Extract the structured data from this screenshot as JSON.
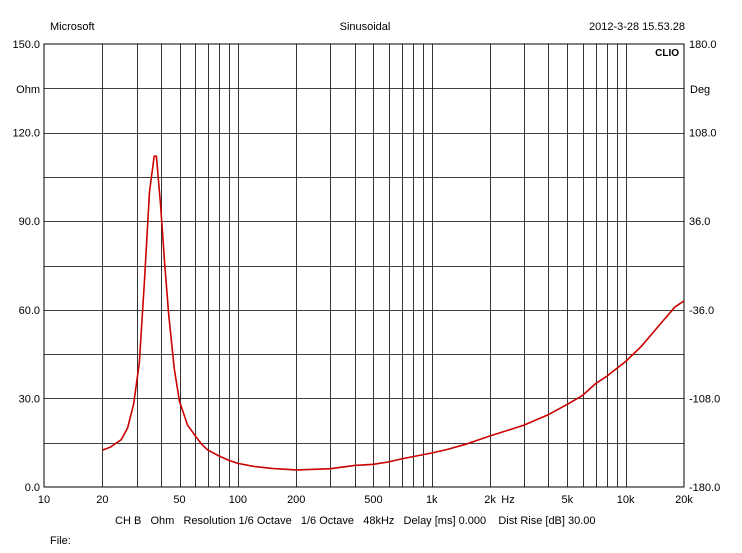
{
  "header": {
    "left": "Microsoft",
    "center": "Sinusoidal",
    "right": "2012-3-28 15.53.28"
  },
  "logo_text": "CLIO",
  "axes": {
    "left_unit": "Ohm",
    "right_unit": "Deg",
    "x_unit": "Hz"
  },
  "footer": {
    "settings": "CH B   Ohm   Resolution 1/6 Octave   1/6 Octave   48kHz   Delay [ms] 0.000    Dist Rise [dB] 30.00",
    "file_label": "File:"
  },
  "colors": {
    "curve": "#cc0000",
    "grid": "#000000",
    "background": "#ffffff"
  },
  "chart_data": {
    "type": "line",
    "title": "Sinusoidal",
    "xlabel": "Hz",
    "ylabel": "Ohm",
    "ylabel_right": "Deg",
    "x_scale": "log",
    "xlim": [
      10,
      20000
    ],
    "ylim": [
      0,
      150
    ],
    "ylim_right": [
      -180,
      180
    ],
    "grid": true,
    "x_ticks": [
      10,
      20,
      50,
      100,
      200,
      500,
      1000,
      2000,
      5000,
      10000,
      20000
    ],
    "x_tick_labels": [
      "10",
      "20",
      "50",
      "100",
      "200",
      "500",
      "1k",
      "2k",
      "5k",
      "10k",
      "20k"
    ],
    "y_ticks": [
      0,
      30,
      60,
      90,
      120,
      150
    ],
    "y_tick_labels": [
      "0.0",
      "30.0",
      "60.0",
      "90.0",
      "120.0",
      "150.0"
    ],
    "y_right_ticks": [
      -180,
      -108,
      -36,
      36,
      108,
      180
    ],
    "y_right_tick_labels": [
      "-180.0",
      "-108.0",
      "-36.0",
      "36.0",
      "108.0",
      "180.0"
    ],
    "series": [
      {
        "color": "#cc0000",
        "x": [
          20,
          22,
          25,
          27,
          29,
          31,
          33,
          35,
          37,
          38,
          40,
          42,
          44,
          47,
          50,
          55,
          60,
          65,
          70,
          80,
          90,
          100,
          120,
          150,
          200,
          250,
          300,
          350,
          400,
          500,
          600,
          700,
          800,
          1000,
          1200,
          1500,
          2000,
          2500,
          3000,
          4000,
          5000,
          6000,
          7000,
          8000,
          10000,
          12000,
          15000,
          18000,
          20000
        ],
        "y": [
          12.5,
          13.5,
          16,
          20,
          28,
          42,
          70,
          100,
          112,
          112,
          95,
          75,
          58,
          40,
          29,
          21,
          17.5,
          14.5,
          12.5,
          10.5,
          9,
          8,
          7,
          6.3,
          5.8,
          6,
          6.2,
          6.8,
          7.3,
          7.7,
          8.5,
          9.5,
          10.3,
          11.5,
          12.7,
          14.5,
          17.3,
          19.3,
          21,
          24.5,
          28,
          31,
          35,
          37.5,
          42.5,
          47.5,
          55,
          61,
          63
        ]
      }
    ]
  }
}
